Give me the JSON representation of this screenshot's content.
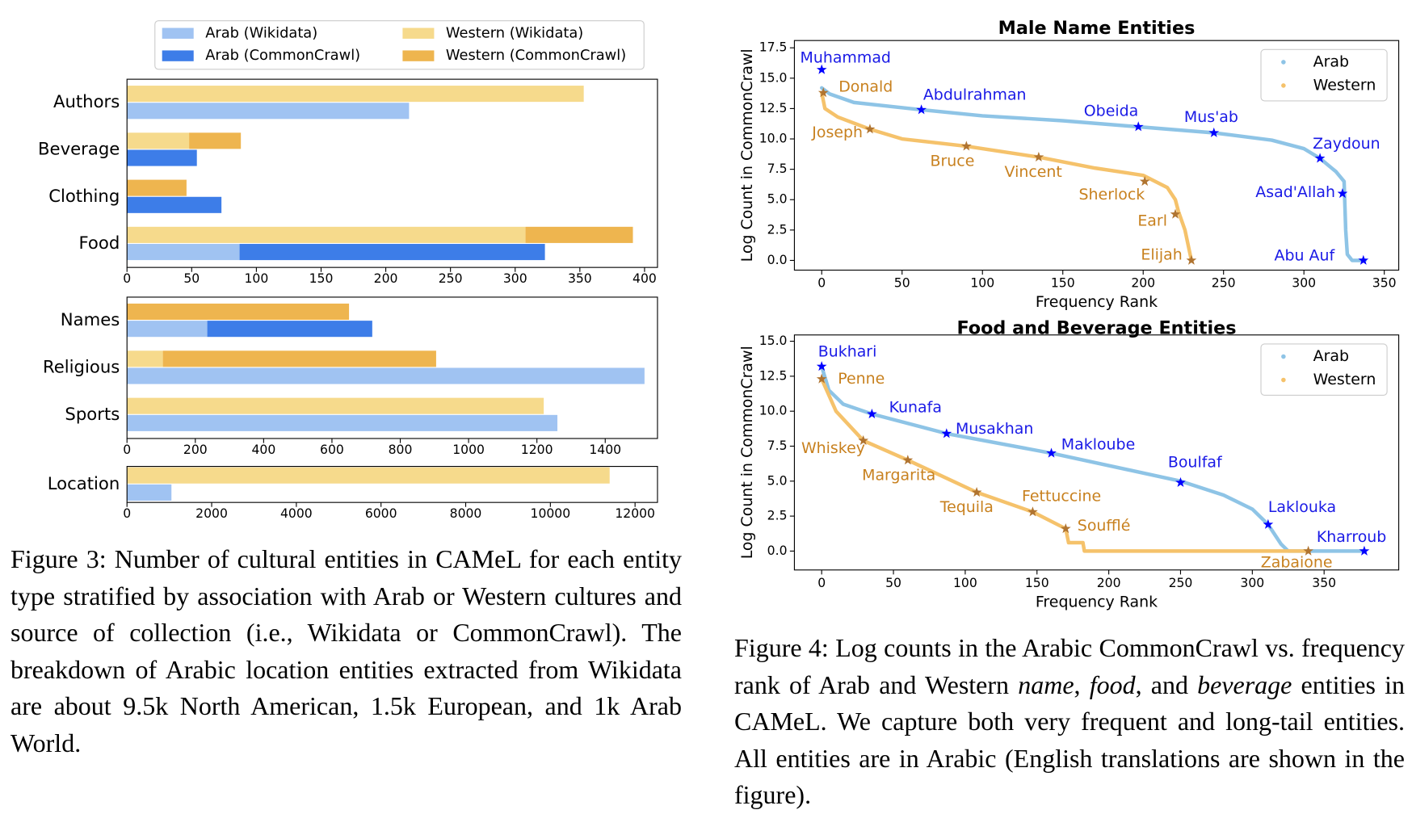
{
  "chart_data": [
    {
      "type": "hbar",
      "categories": [
        "Authors",
        "Beverage",
        "Clothing",
        "Food"
      ],
      "xlim": [
        0,
        410
      ],
      "xticks": [
        0,
        50,
        100,
        150,
        200,
        250,
        300,
        350,
        400
      ],
      "legend": "top",
      "series": [
        {
          "name": "Arab (Wikidata)",
          "color": "#a0c3f2",
          "values": [
            218,
            0,
            0,
            87
          ]
        },
        {
          "name": "Arab (CommonCrawl)",
          "color": "#3d7de8",
          "values": [
            0,
            54,
            73,
            236
          ]
        },
        {
          "name": "Western (Wikidata)",
          "color": "#f6da8c",
          "values": [
            353,
            48,
            0,
            308
          ]
        },
        {
          "name": "Western (CommonCrawl)",
          "color": "#eeb54f",
          "values": [
            0,
            40,
            46,
            83
          ]
        }
      ]
    },
    {
      "type": "hbar",
      "categories": [
        "Names",
        "Religious",
        "Sports"
      ],
      "xlim": [
        0,
        1553
      ],
      "xticks": [
        0,
        200,
        400,
        600,
        800,
        1000,
        1200,
        1400
      ],
      "series": [
        {
          "color": "#a0c3f2",
          "values": [
            235,
            1515,
            1260
          ]
        },
        {
          "color": "#3d7de8",
          "values": [
            483,
            0,
            0
          ]
        },
        {
          "color": "#f6da8c",
          "values": [
            0,
            105,
            1220
          ]
        },
        {
          "color": "#eeb54f",
          "values": [
            650,
            800,
            0
          ]
        }
      ]
    },
    {
      "type": "hbar",
      "categories": [
        "Location"
      ],
      "xlim": [
        0,
        12530
      ],
      "xticks": [
        0,
        2000,
        4000,
        6000,
        8000,
        10000,
        12000
      ],
      "series": [
        {
          "color": "#a0c3f2",
          "values": [
            1050
          ]
        },
        {
          "color": "#3d7de8",
          "values": [
            0
          ]
        },
        {
          "color": "#f6da8c",
          "values": [
            11400
          ]
        },
        {
          "color": "#eeb54f",
          "values": [
            0
          ]
        }
      ]
    },
    {
      "type": "scatter",
      "title": "Male Name Entities",
      "xlabel": "Frequency Rank",
      "ylabel": "Log Count in CommonCrawl",
      "xlim": [
        -17,
        359
      ],
      "ylim": [
        -0.8,
        18.1
      ],
      "xticks": [
        0,
        50,
        100,
        150,
        200,
        250,
        300,
        350
      ],
      "yticks": [
        {
          "value": 0,
          "label": "0.0"
        },
        2.5,
        {
          "value": 5,
          "label": "5.0"
        },
        7.5,
        {
          "value": 10,
          "label": "10.0"
        },
        12.5,
        {
          "value": 15,
          "label": "15.0"
        },
        17.5
      ],
      "legend": "upper right",
      "series": [
        {
          "name": "Arab",
          "color": "#8ec4e6",
          "x": [
            0,
            5,
            20,
            62,
            100,
            150,
            197,
            244,
            280,
            300,
            310,
            320,
            325,
            326,
            327,
            330,
            338
          ],
          "values": [
            14.2,
            13.7,
            13.0,
            12.4,
            11.9,
            11.5,
            11.0,
            10.5,
            9.9,
            9.2,
            8.4,
            7.3,
            6.5,
            2.5,
            0.5,
            0,
            0
          ]
        },
        {
          "name": "Western",
          "color": "#f5c26b",
          "x": [
            0,
            2,
            10,
            30,
            50,
            90,
            135,
            170,
            200,
            215,
            220,
            222,
            226,
            230
          ],
          "values": [
            13.8,
            12.5,
            11.8,
            10.8,
            10.0,
            9.4,
            8.5,
            7.6,
            7.0,
            6.0,
            5.0,
            4.0,
            2.5,
            0
          ]
        }
      ],
      "annotations": [
        {
          "text": "Muhammad",
          "x": 0,
          "y": 15.7,
          "color": "#1a1ae6"
        },
        {
          "text": "Donald",
          "x": 1,
          "y": 13.8,
          "color": "#c8811f"
        },
        {
          "text": "Abdulrahman",
          "x": 62,
          "y": 12.4,
          "color": "#1a1ae6"
        },
        {
          "text": "Joseph",
          "x": 30,
          "y": 10.8,
          "color": "#c8811f"
        },
        {
          "text": "Bruce",
          "x": 90,
          "y": 9.4,
          "color": "#c8811f"
        },
        {
          "text": "Vincent",
          "x": 135,
          "y": 8.5,
          "color": "#c8811f"
        },
        {
          "text": "Obeida",
          "x": 197,
          "y": 11.0,
          "color": "#1a1ae6"
        },
        {
          "text": "Mus'ab",
          "x": 244,
          "y": 10.5,
          "color": "#1a1ae6"
        },
        {
          "text": "Sherlock",
          "x": 201,
          "y": 6.5,
          "color": "#c8811f"
        },
        {
          "text": "Earl",
          "x": 220,
          "y": 3.8,
          "color": "#c8811f"
        },
        {
          "text": "Elijah",
          "x": 230,
          "y": 0,
          "color": "#c8811f"
        },
        {
          "text": "Zaydoun",
          "x": 310,
          "y": 8.4,
          "color": "#1a1ae6"
        },
        {
          "text": "Asad'Allah",
          "x": 324,
          "y": 5.5,
          "color": "#1a1ae6"
        },
        {
          "text": "Abu Auf",
          "x": 337,
          "y": 0,
          "color": "#1a1ae6"
        }
      ]
    },
    {
      "type": "scatter",
      "title": "Food and Beverage Entities",
      "xlabel": "Frequency Rank",
      "ylabel": "Log Count in CommonCrawl",
      "xlim": [
        -19,
        402
      ],
      "ylim": [
        -1.35,
        15.45
      ],
      "xticks": [
        0,
        50,
        100,
        150,
        200,
        250,
        300,
        350
      ],
      "yticks": [
        {
          "value": 0,
          "label": "0.0"
        },
        2.5,
        {
          "value": 5,
          "label": "5.0"
        },
        7.5,
        {
          "value": 10,
          "label": "10.0"
        },
        12.5,
        {
          "value": 15,
          "label": "15.0"
        }
      ],
      "legend": "upper right",
      "series": [
        {
          "name": "Arab",
          "color": "#8ec4e6",
          "x": [
            0,
            5,
            15,
            35,
            87,
            160,
            250,
            280,
            300,
            311,
            320,
            325,
            378
          ],
          "values": [
            13.2,
            11.5,
            10.5,
            9.8,
            8.4,
            7.0,
            5.0,
            4.0,
            3.0,
            1.9,
            0.5,
            0,
            0
          ]
        },
        {
          "name": "Western",
          "color": "#f5c26b",
          "x": [
            0,
            10,
            29,
            60,
            108,
            147,
            170,
            172,
            182,
            183,
            339
          ],
          "values": [
            12.3,
            10.0,
            7.9,
            6.5,
            4.2,
            2.8,
            1.6,
            0.6,
            0.6,
            0,
            0
          ]
        }
      ],
      "annotations": [
        {
          "text": "Bukhari",
          "x": 0,
          "y": 13.2,
          "color": "#1a1ae6"
        },
        {
          "text": "Penne",
          "x": 0,
          "y": 12.3,
          "color": "#c8811f"
        },
        {
          "text": "Kunafa",
          "x": 35,
          "y": 9.8,
          "color": "#1a1ae6"
        },
        {
          "text": "Musakhan",
          "x": 87,
          "y": 8.4,
          "color": "#1a1ae6"
        },
        {
          "text": "Makloube",
          "x": 160,
          "y": 7.0,
          "color": "#1a1ae6"
        },
        {
          "text": "Boulfaf",
          "x": 250,
          "y": 4.9,
          "color": "#1a1ae6"
        },
        {
          "text": "Laklouka",
          "x": 311,
          "y": 1.9,
          "color": "#1a1ae6"
        },
        {
          "text": "Kharroub",
          "x": 378,
          "y": 0,
          "color": "#1a1ae6"
        },
        {
          "text": "Whiskey",
          "x": 29,
          "y": 7.9,
          "color": "#c8811f"
        },
        {
          "text": "Margarita",
          "x": 60,
          "y": 6.5,
          "color": "#c8811f"
        },
        {
          "text": "Tequila",
          "x": 108,
          "y": 4.2,
          "color": "#c8811f"
        },
        {
          "text": "Fettuccine",
          "x": 147,
          "y": 2.8,
          "color": "#c8811f"
        },
        {
          "text": "Soufflé",
          "x": 170,
          "y": 1.6,
          "color": "#c8811f"
        },
        {
          "text": "Zabaione",
          "x": 339,
          "y": 0,
          "color": "#c8811f"
        }
      ]
    }
  ],
  "figure3_caption": "Figure 3: Number of cultural entities in CAMeL for each entity type stratified by association with Arab or Western cultures and source of collection (i.e., Wikidata or CommonCrawl). The breakdown of Arabic location entities extracted from Wikidata are about 9.5k North American, 1.5k European, and 1k Arab World.",
  "figure4_caption": [
    "Figure 4: Log counts in the Arabic CommonCrawl vs. frequency rank of Arab and Western ",
    "name",
    ", ",
    "food",
    ", and ",
    "beverage",
    " entities in CAMeL. We capture both very frequent and long-tail entities. All entities are in Arabic (English translations are shown in the figure)."
  ]
}
